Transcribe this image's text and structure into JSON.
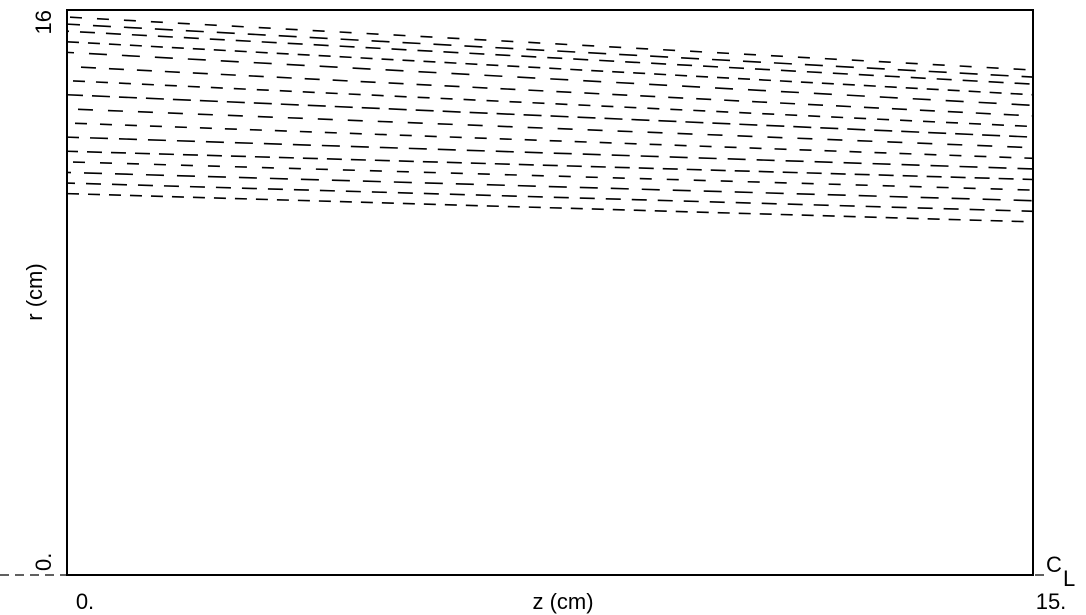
{
  "chart_data": {
    "type": "line",
    "x_label": "z (cm)",
    "y_label": "r (cm)",
    "annotation": {
      "text": "C",
      "subscript": "L"
    },
    "xlim": [
      0,
      15
    ],
    "ylim": [
      0,
      16
    ],
    "xticks": [
      {
        "value": 0,
        "label": "0."
      },
      {
        "value": 15,
        "label": "15."
      }
    ],
    "yticks": [
      {
        "value": 0,
        "label": "0."
      },
      16
    ],
    "x": [
      0,
      15
    ],
    "series": [
      {
        "color": "#000000",
        "values": [
          10.8,
          10.0
        ]
      },
      {
        "color": "#000000",
        "values": [
          11.1,
          10.3
        ]
      },
      {
        "color": "#000000",
        "values": [
          11.4,
          10.6
        ]
      },
      {
        "color": "#000000",
        "values": [
          11.7,
          10.9
        ]
      },
      {
        "color": "#000000",
        "values": [
          12.0,
          11.2
        ]
      },
      {
        "color": "#000000",
        "values": [
          12.4,
          11.5
        ]
      },
      {
        "color": "#000000",
        "values": [
          12.8,
          11.8
        ]
      },
      {
        "color": "#000000",
        "values": [
          13.2,
          12.1
        ]
      },
      {
        "color": "#000000",
        "values": [
          13.6,
          12.4
        ]
      },
      {
        "color": "#000000",
        "values": [
          14.0,
          12.7
        ]
      },
      {
        "color": "#000000",
        "values": [
          14.4,
          13.0
        ]
      },
      {
        "color": "#000000",
        "values": [
          14.8,
          13.3
        ]
      },
      {
        "color": "#000000",
        "values": [
          15.1,
          13.6
        ]
      },
      {
        "color": "#000000",
        "values": [
          15.4,
          13.9
        ]
      },
      {
        "color": "#000000",
        "values": [
          15.6,
          14.1
        ]
      },
      {
        "color": "#000000",
        "values": [
          15.8,
          14.3
        ]
      }
    ]
  }
}
